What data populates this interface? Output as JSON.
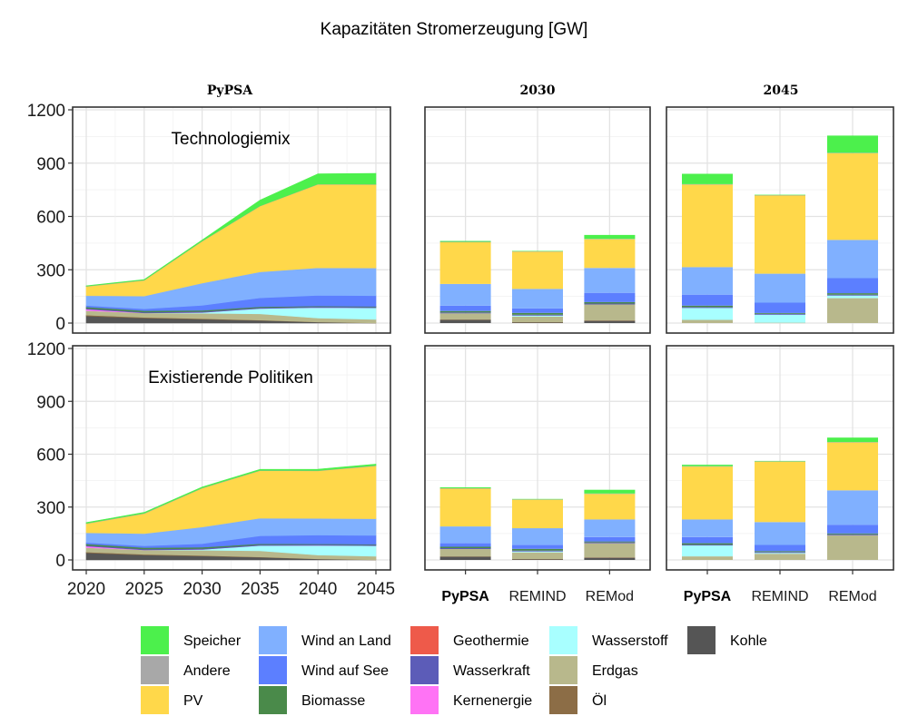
{
  "chart_data": {
    "type": "area",
    "title": "Kapazitäten Stromerzeugung [GW]",
    "unit": "GW",
    "ylim": [
      0,
      1200
    ],
    "yticks": [
      0,
      300,
      600,
      900,
      1200
    ],
    "grid": true,
    "legend_position": "bottom",
    "strips": {
      "left": "PyPSA",
      "mid": "2030",
      "right": "2045"
    },
    "rows": [
      {
        "key": "tech",
        "annotation": "Technologiemix"
      },
      {
        "key": "pol",
        "annotation": "Existierende Politiken"
      }
    ],
    "years": [
      2020,
      2025,
      2030,
      2035,
      2040,
      2045
    ],
    "models": [
      "PyPSA",
      "REMIND",
      "REMod"
    ],
    "technologies": [
      {
        "key": "kohle",
        "name": "Kohle",
        "color": "#555555"
      },
      {
        "key": "oel",
        "name": "Öl",
        "color": "#8C6D46"
      },
      {
        "key": "erdgas",
        "name": "Erdgas",
        "color": "#B8B88C"
      },
      {
        "key": "wasserstoff",
        "name": "Wasserstoff",
        "color": "#A8FFFF"
      },
      {
        "key": "kernenergie",
        "name": "Kernenergie",
        "color": "#FF73F5"
      },
      {
        "key": "wasserkraft",
        "name": "Wasserkraft",
        "color": "#5C5CB8"
      },
      {
        "key": "geothermie",
        "name": "Geothermie",
        "color": "#EE5A4A"
      },
      {
        "key": "biomasse",
        "name": "Biomasse",
        "color": "#4A8A4A"
      },
      {
        "key": "wind_see",
        "name": "Wind auf See",
        "color": "#5C7FFF"
      },
      {
        "key": "wind_land",
        "name": "Wind an Land",
        "color": "#80B0FF"
      },
      {
        "key": "pv",
        "name": "PV",
        "color": "#FFD84A"
      },
      {
        "key": "andere",
        "name": "Andere",
        "color": "#A8A8A8"
      },
      {
        "key": "speicher",
        "name": "Speicher",
        "color": "#4CF04C"
      }
    ],
    "legend_layout": [
      [
        "speicher",
        "andere",
        "pv"
      ],
      [
        "wind_land",
        "wind_see",
        "biomasse"
      ],
      [
        "geothermie",
        "wasserkraft",
        "kernenergie"
      ],
      [
        "wasserstoff",
        "erdgas",
        "oel"
      ],
      [
        "kohle"
      ]
    ],
    "pypsa_timeseries": {
      "tech": {
        "kohle": [
          40,
          28,
          22,
          15,
          5,
          0
        ],
        "oel": [
          5,
          4,
          3,
          2,
          1,
          1
        ],
        "erdgas": [
          25,
          25,
          30,
          35,
          22,
          20
        ],
        "wasserstoff": [
          0,
          0,
          5,
          30,
          60,
          65
        ],
        "kernenergie": [
          8,
          0,
          0,
          0,
          0,
          0
        ],
        "wasserkraft": [
          5,
          5,
          5,
          5,
          5,
          5
        ],
        "geothermie": [
          0,
          0,
          0,
          0,
          0,
          0
        ],
        "biomasse": [
          8,
          8,
          7,
          5,
          3,
          3
        ],
        "wind_see": [
          8,
          10,
          28,
          50,
          60,
          60
        ],
        "wind_land": [
          55,
          72,
          125,
          146,
          155,
          156
        ],
        "pv": [
          52,
          88,
          235,
          370,
          470,
          470
        ],
        "andere": [
          2,
          2,
          2,
          2,
          2,
          2
        ],
        "speicher": [
          2,
          3,
          5,
          32,
          57,
          60
        ]
      },
      "pol": {
        "kohle": [
          40,
          28,
          22,
          15,
          5,
          0
        ],
        "oel": [
          5,
          4,
          3,
          2,
          1,
          1
        ],
        "erdgas": [
          25,
          25,
          30,
          35,
          22,
          20
        ],
        "wasserstoff": [
          0,
          0,
          5,
          30,
          55,
          60
        ],
        "kernenergie": [
          8,
          0,
          0,
          0,
          0,
          0
        ],
        "wasserkraft": [
          5,
          5,
          5,
          5,
          5,
          5
        ],
        "geothermie": [
          0,
          0,
          0,
          0,
          0,
          0
        ],
        "biomasse": [
          8,
          8,
          7,
          5,
          3,
          3
        ],
        "wind_see": [
          8,
          10,
          20,
          45,
          50,
          50
        ],
        "wind_land": [
          55,
          70,
          95,
          100,
          95,
          95
        ],
        "pv": [
          52,
          113,
          220,
          270,
          270,
          300
        ],
        "andere": [
          2,
          2,
          2,
          2,
          2,
          2
        ],
        "speicher": [
          4,
          5,
          5,
          5,
          7,
          8
        ]
      }
    },
    "model_bars": {
      "tech": {
        "2030": {
          "PyPSA": {
            "kohle": 18,
            "oel": 2,
            "erdgas": 35,
            "wasserstoff": 0,
            "kernenergie": 0,
            "wasserkraft": 5,
            "geothermie": 0,
            "biomasse": 8,
            "wind_see": 30,
            "wind_land": 122,
            "pv": 235,
            "andere": 2,
            "speicher": 5
          },
          "REMIND": {
            "kohle": 3,
            "oel": 2,
            "erdgas": 32,
            "wasserstoff": 5,
            "kernenergie": 0,
            "wasserkraft": 5,
            "geothermie": 0,
            "biomasse": 10,
            "wind_see": 25,
            "wind_land": 110,
            "pv": 210,
            "andere": 2,
            "speicher": 2
          },
          "REMod": {
            "kohle": 12,
            "oel": 3,
            "erdgas": 90,
            "wasserstoff": 0,
            "kernenergie": 0,
            "wasserkraft": 5,
            "geothermie": 0,
            "biomasse": 8,
            "wind_see": 52,
            "wind_land": 140,
            "pv": 162,
            "andere": 2,
            "speicher": 22
          }
        },
        "2045": {
          "PyPSA": {
            "kohle": 0,
            "oel": 0,
            "erdgas": 18,
            "wasserstoff": 67,
            "kernenergie": 0,
            "wasserkraft": 5,
            "geothermie": 0,
            "biomasse": 8,
            "wind_see": 62,
            "wind_land": 155,
            "pv": 465,
            "andere": 2,
            "speicher": 58
          },
          "REMIND": {
            "kohle": 0,
            "oel": 0,
            "erdgas": 2,
            "wasserstoff": 45,
            "kernenergie": 0,
            "wasserkraft": 5,
            "geothermie": 0,
            "biomasse": 5,
            "wind_see": 58,
            "wind_land": 163,
            "pv": 440,
            "andere": 2,
            "speicher": 2
          },
          "REMod": {
            "kohle": 0,
            "oel": 0,
            "erdgas": 140,
            "wasserstoff": 15,
            "kernenergie": 0,
            "wasserkraft": 5,
            "geothermie": 0,
            "biomasse": 8,
            "wind_see": 85,
            "wind_land": 215,
            "pv": 488,
            "andere": 2,
            "speicher": 97
          }
        }
      },
      "pol": {
        "2030": {
          "PyPSA": {
            "kohle": 18,
            "oel": 2,
            "erdgas": 42,
            "wasserstoff": 0,
            "kernenergie": 0,
            "wasserkraft": 5,
            "geothermie": 0,
            "biomasse": 8,
            "wind_see": 20,
            "wind_land": 95,
            "pv": 215,
            "andere": 2,
            "speicher": 5
          },
          "REMIND": {
            "kohle": 3,
            "oel": 2,
            "erdgas": 38,
            "wasserstoff": 5,
            "kernenergie": 0,
            "wasserkraft": 5,
            "geothermie": 0,
            "biomasse": 10,
            "wind_see": 22,
            "wind_land": 95,
            "pv": 162,
            "andere": 2,
            "speicher": 2
          },
          "REMod": {
            "kohle": 12,
            "oel": 3,
            "erdgas": 80,
            "wasserstoff": 0,
            "kernenergie": 0,
            "wasserkraft": 5,
            "geothermie": 0,
            "biomasse": 5,
            "wind_see": 25,
            "wind_land": 100,
            "pv": 145,
            "andere": 2,
            "speicher": 21
          }
        },
        "2045": {
          "PyPSA": {
            "kohle": 0,
            "oel": 0,
            "erdgas": 20,
            "wasserstoff": 62,
            "kernenergie": 0,
            "wasserkraft": 5,
            "geothermie": 0,
            "biomasse": 8,
            "wind_see": 35,
            "wind_land": 100,
            "pv": 300,
            "andere": 2,
            "speicher": 8
          },
          "REMIND": {
            "kohle": 0,
            "oel": 0,
            "erdgas": 35,
            "wasserstoff": 5,
            "kernenergie": 0,
            "wasserkraft": 5,
            "geothermie": 0,
            "biomasse": 5,
            "wind_see": 35,
            "wind_land": 130,
            "pv": 343,
            "andere": 2,
            "speicher": 2
          },
          "REMod": {
            "kohle": 0,
            "oel": 0,
            "erdgas": 140,
            "wasserstoff": 0,
            "kernenergie": 0,
            "wasserkraft": 5,
            "geothermie": 0,
            "biomasse": 5,
            "wind_see": 50,
            "wind_land": 195,
            "pv": 272,
            "andere": 2,
            "speicher": 25
          }
        }
      }
    }
  }
}
